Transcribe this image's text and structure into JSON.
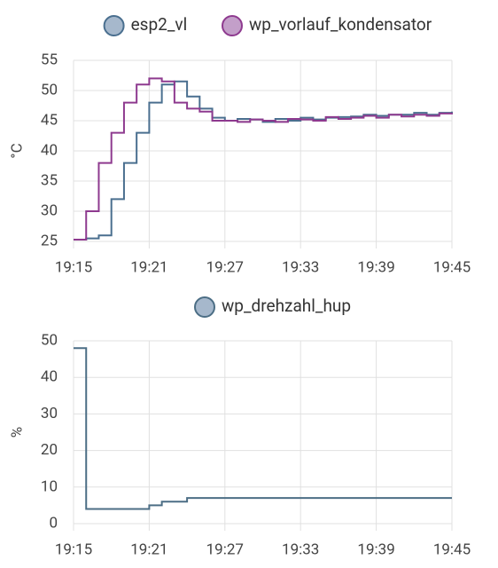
{
  "chart_data": [
    {
      "type": "line",
      "step": true,
      "ylabel": "°C",
      "x": [
        "19:15",
        "19:16",
        "19:17",
        "19:18",
        "19:19",
        "19:20",
        "19:21",
        "19:22",
        "19:23",
        "19:24",
        "19:25",
        "19:26",
        "19:27",
        "19:28",
        "19:29",
        "19:30",
        "19:31",
        "19:32",
        "19:33",
        "19:34",
        "19:35",
        "19:36",
        "19:37",
        "19:38",
        "19:39",
        "19:40",
        "19:41",
        "19:42",
        "19:43",
        "19:44",
        "19:45"
      ],
      "series": [
        {
          "name": "esp2_vl",
          "color": "#4a6f8f",
          "legend_color": "#a6b8cc",
          "values": [
            25.3,
            25.5,
            26,
            32,
            38,
            43,
            48,
            51,
            51.5,
            49,
            47,
            45.5,
            45,
            45.3,
            45.2,
            44.8,
            45.3,
            45,
            45.5,
            45.2,
            45.5,
            45.6,
            45.7,
            46,
            45.8,
            46,
            46,
            46.3,
            46,
            46.3,
            46.5
          ]
        },
        {
          "name": "wp_vorlauf_kondensator",
          "color": "#8e3a8f",
          "legend_color": "#c39fc9",
          "values": [
            25.3,
            30,
            38,
            43,
            48,
            51,
            52,
            51.5,
            48,
            47,
            46.5,
            45,
            45,
            44.8,
            45.2,
            45,
            44.8,
            45.3,
            45.2,
            45,
            45.6,
            45.3,
            45.5,
            45.8,
            45.5,
            46,
            45.7,
            46,
            45.8,
            46.2,
            46.3
          ]
        }
      ],
      "xlim": [
        "19:15",
        "19:45"
      ],
      "xticks": [
        "19:15",
        "19:21",
        "19:27",
        "19:33",
        "19:39",
        "19:45"
      ],
      "ylim": [
        25,
        55
      ],
      "yticks": [
        25,
        30,
        35,
        40,
        45,
        50,
        55
      ],
      "grid": true
    },
    {
      "type": "line",
      "step": true,
      "ylabel": "%",
      "x": [
        "19:15",
        "19:16",
        "19:21",
        "19:22",
        "19:24",
        "19:45"
      ],
      "series": [
        {
          "name": "wp_drehzahl_hup",
          "color": "#4c6e85",
          "legend_color": "#a6b8cc",
          "values": [
            48,
            4,
            5,
            6,
            7,
            7
          ]
        }
      ],
      "xlim": [
        "19:15",
        "19:45"
      ],
      "xticks": [
        "19:15",
        "19:21",
        "19:27",
        "19:33",
        "19:39",
        "19:45"
      ],
      "ylim": [
        0,
        50
      ],
      "yticks": [
        0,
        10,
        20,
        30,
        40,
        50
      ],
      "grid": true
    }
  ]
}
